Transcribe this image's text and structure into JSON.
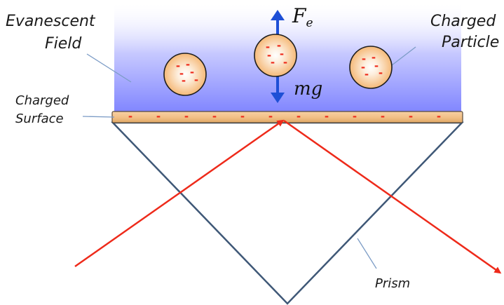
{
  "labels": {
    "evanescent_line1": "Evanescent",
    "evanescent_line2": "Field",
    "charged_particle_line1": "Charged",
    "charged_particle_line2": "Particle",
    "charged_surface_line1": "Charged",
    "charged_surface_line2": "Surface",
    "prism": "Prism"
  },
  "forces": {
    "electrostatic_symbol": "F",
    "electrostatic_subscript": "e",
    "gravity": "mg"
  },
  "charge_sign": "-",
  "colors": {
    "field_top": "#ffffff",
    "field_bottom": "#7f84ff",
    "particle_center": "#ffffff",
    "particle_edge": "#f5b978",
    "surface_fill": "#f2c088",
    "prism_outline": "#3f5877",
    "laser": "#ee2a1a",
    "force_arrow": "#1e4fd6",
    "leader_line": "#7c9cc6"
  }
}
